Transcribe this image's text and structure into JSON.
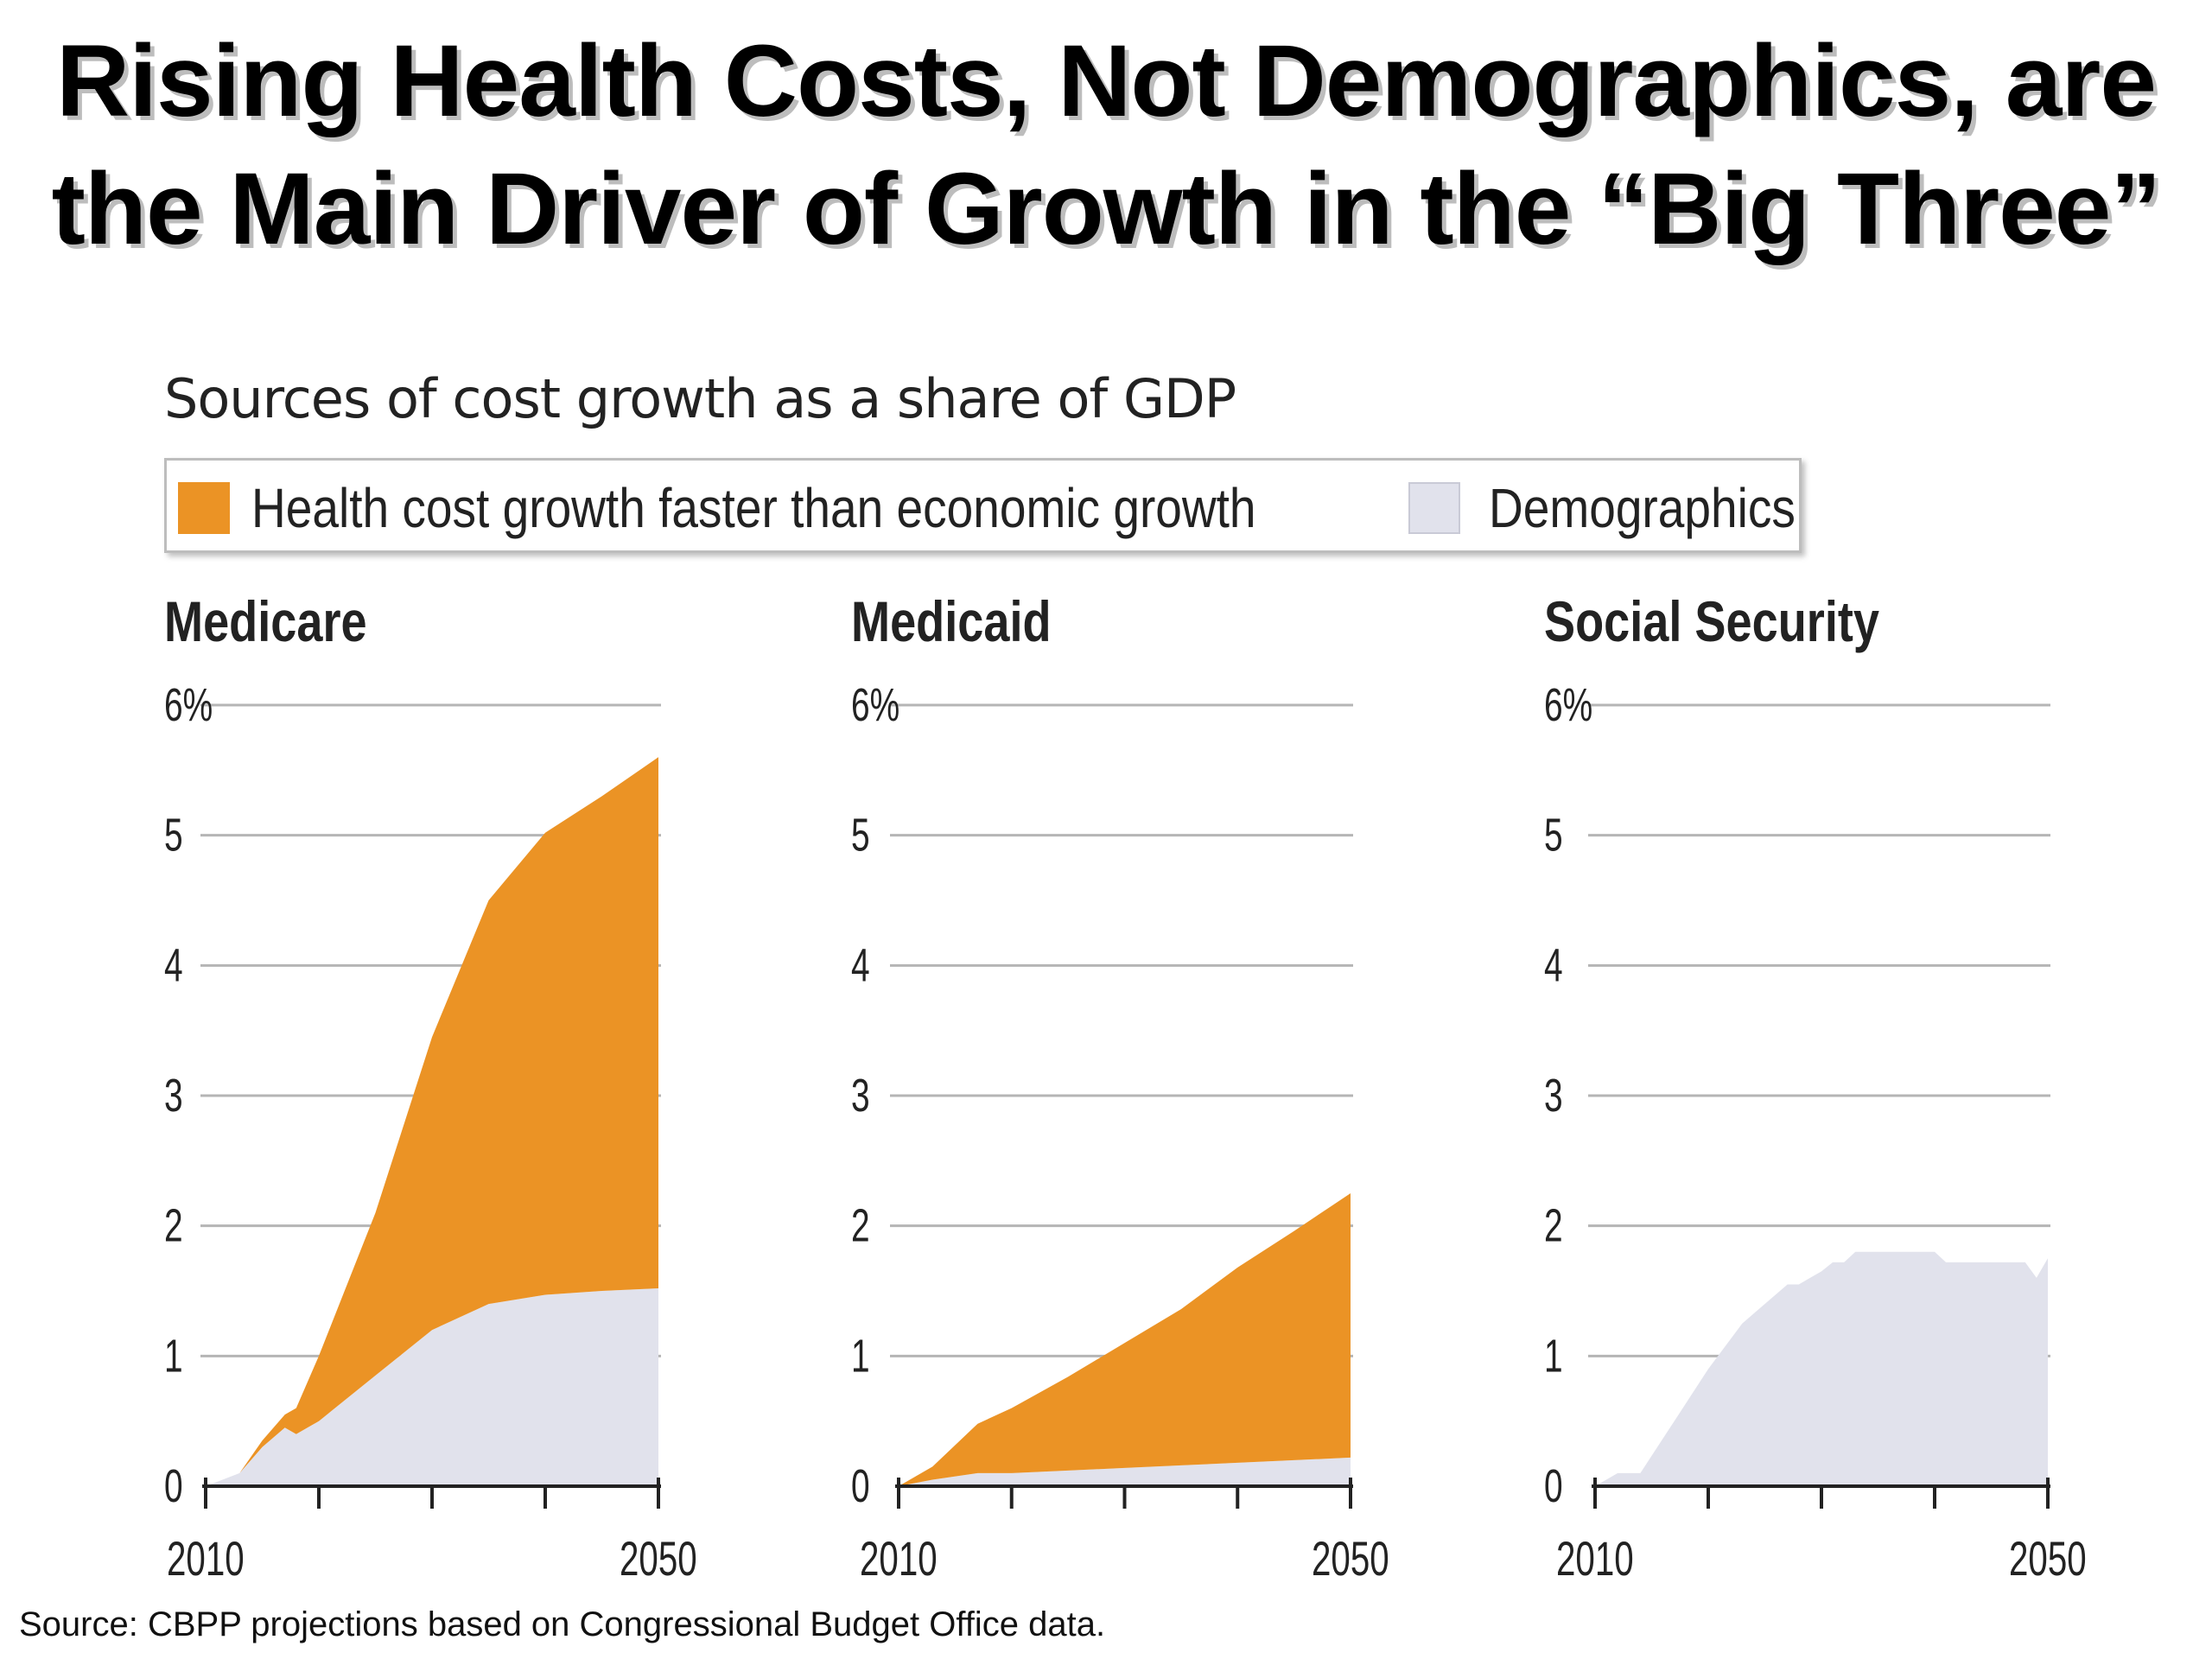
{
  "slide": {
    "title_line1": "Rising Health Costs, Not Demographics, are",
    "title_line2": "the Main Driver of Growth in the “Big Three”"
  },
  "chart_subtitle": "Sources of cost growth as a share of GDP",
  "legend": {
    "items": [
      {
        "label": "Health cost growth faster than economic growth",
        "color": "#EB9325"
      },
      {
        "label": "Demographics",
        "color": "#E1E2EC"
      }
    ]
  },
  "colors": {
    "health": "#EB9325",
    "demographics": "#E1E2EC",
    "grid": "#b5b5b5",
    "axis": "#222222"
  },
  "chart_data": [
    {
      "type": "area",
      "title": "Medicare",
      "x": [
        2010,
        2013,
        2015,
        2017,
        2018,
        2020,
        2025,
        2030,
        2035,
        2040,
        2045,
        2050
      ],
      "xlim": [
        2010,
        2050
      ],
      "x_tick_labels": [
        "2010",
        "2050"
      ],
      "ylim": [
        0,
        6
      ],
      "y_tick_labels": [
        "0",
        "1",
        "2",
        "3",
        "4",
        "5",
        "6%"
      ],
      "stacked": true,
      "grid": true,
      "series": [
        {
          "name": "Demographics",
          "values": [
            0.0,
            0.1,
            0.3,
            0.45,
            0.4,
            0.5,
            0.85,
            1.2,
            1.4,
            1.47,
            1.5,
            1.52
          ]
        },
        {
          "name": "Health cost growth faster than economic growth",
          "values": [
            0.0,
            0.0,
            0.05,
            0.1,
            0.2,
            0.5,
            1.25,
            2.25,
            3.1,
            3.55,
            3.8,
            4.08
          ]
        }
      ]
    },
    {
      "type": "area",
      "title": "Medicaid",
      "x": [
        2010,
        2013,
        2017,
        2020,
        2025,
        2030,
        2035,
        2040,
        2045,
        2050
      ],
      "xlim": [
        2010,
        2050
      ],
      "x_tick_labels": [
        "2010",
        "2050"
      ],
      "ylim": [
        0,
        6
      ],
      "y_tick_labels": [
        "0",
        "1",
        "2",
        "3",
        "4",
        "5",
        "6%"
      ],
      "stacked": true,
      "grid": true,
      "series": [
        {
          "name": "Demographics",
          "values": [
            0.0,
            0.05,
            0.1,
            0.1,
            0.12,
            0.14,
            0.16,
            0.18,
            0.2,
            0.22
          ]
        },
        {
          "name": "Health cost growth faster than economic growth",
          "values": [
            0.0,
            0.1,
            0.38,
            0.5,
            0.72,
            0.96,
            1.2,
            1.5,
            1.76,
            2.03
          ]
        }
      ]
    },
    {
      "type": "area",
      "title": "Social Security",
      "x": [
        2010,
        2012,
        2014,
        2017,
        2020,
        2023,
        2027,
        2028,
        2029,
        2030,
        2031,
        2032,
        2033,
        2040,
        2041,
        2043,
        2048,
        2049,
        2050
      ],
      "xlim": [
        2010,
        2050
      ],
      "x_tick_labels": [
        "2010",
        "2050"
      ],
      "ylim": [
        0,
        6
      ],
      "y_tick_labels": [
        "0",
        "1",
        "2",
        "3",
        "4",
        "5",
        "6%"
      ],
      "stacked": true,
      "grid": true,
      "series": [
        {
          "name": "Demographics",
          "values": [
            0.0,
            0.1,
            0.1,
            0.5,
            0.9,
            1.25,
            1.55,
            1.55,
            1.6,
            1.65,
            1.72,
            1.72,
            1.8,
            1.8,
            1.72,
            1.72,
            1.72,
            1.6,
            1.75
          ]
        }
      ]
    }
  ],
  "source": "Source: CBPP projections based on Congressional Budget Office data."
}
